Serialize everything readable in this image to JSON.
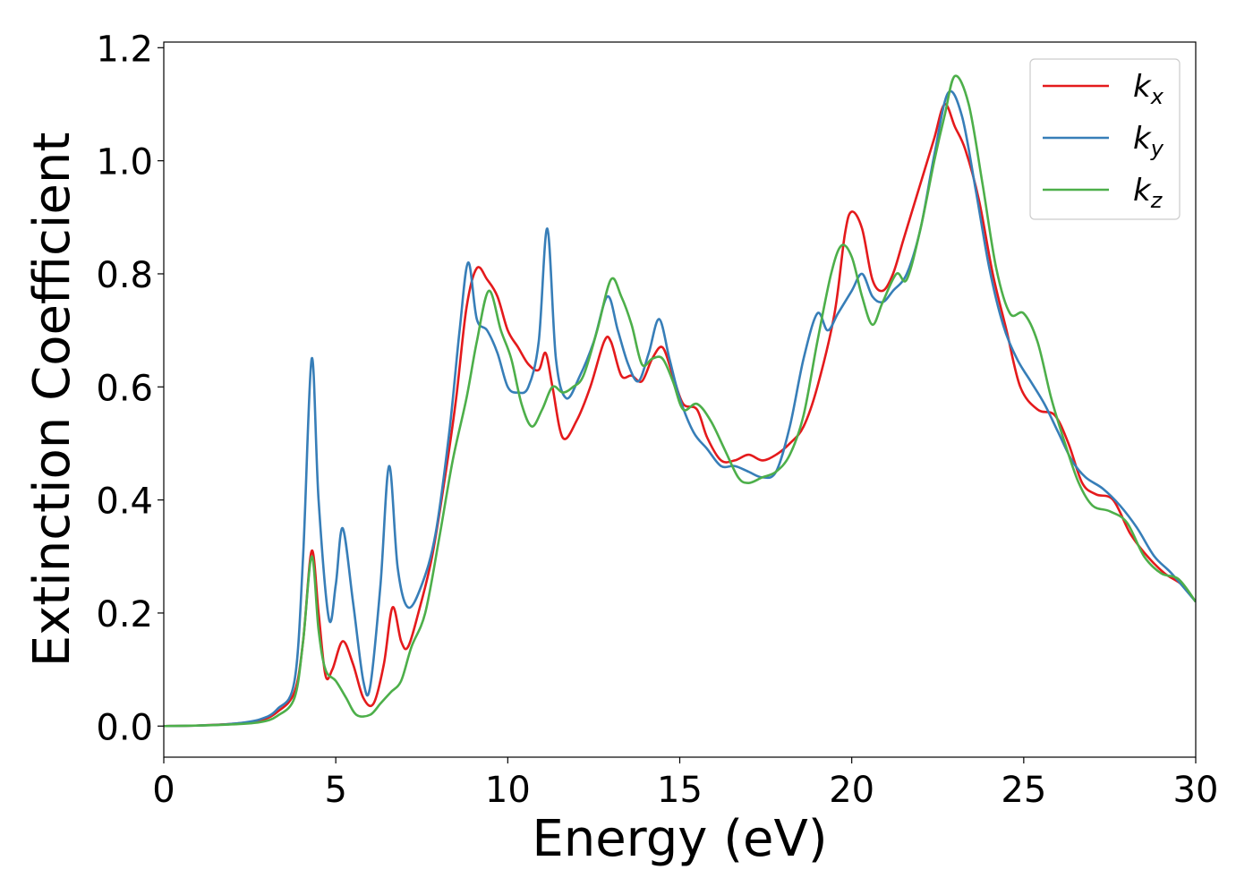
{
  "chart_data": {
    "type": "line",
    "title": "",
    "xlabel": "Energy (eV)",
    "ylabel": "Extinction Coefficient",
    "xlim": [
      0,
      30
    ],
    "ylim": [
      -0.055,
      1.21
    ],
    "xticks": [
      0,
      5,
      10,
      15,
      20,
      25,
      30
    ],
    "xtick_labels": [
      "0",
      "5",
      "10",
      "15",
      "20",
      "25",
      "30"
    ],
    "yticks": [
      0.0,
      0.2,
      0.4,
      0.6,
      0.8,
      1.0,
      1.2
    ],
    "ytick_labels": [
      "0.0",
      "0.2",
      "0.4",
      "0.6",
      "0.8",
      "1.0",
      "1.2"
    ],
    "grid": false,
    "legend_position": "top-right",
    "series": [
      {
        "name": "k_x",
        "base": "k",
        "sub": "x",
        "color": "#e41a1c",
        "points": [
          [
            0,
            0
          ],
          [
            1,
            0.001
          ],
          [
            2,
            0.004
          ],
          [
            2.8,
            0.01
          ],
          [
            3.3,
            0.025
          ],
          [
            3.8,
            0.06
          ],
          [
            4.05,
            0.15
          ],
          [
            4.3,
            0.31
          ],
          [
            4.5,
            0.2
          ],
          [
            4.7,
            0.09
          ],
          [
            4.9,
            0.1
          ],
          [
            5.2,
            0.15
          ],
          [
            5.5,
            0.11
          ],
          [
            5.8,
            0.05
          ],
          [
            6.1,
            0.04
          ],
          [
            6.4,
            0.11
          ],
          [
            6.65,
            0.21
          ],
          [
            6.9,
            0.15
          ],
          [
            7.1,
            0.14
          ],
          [
            7.4,
            0.2
          ],
          [
            7.8,
            0.3
          ],
          [
            8.2,
            0.45
          ],
          [
            8.5,
            0.58
          ],
          [
            8.8,
            0.74
          ],
          [
            9.1,
            0.81
          ],
          [
            9.4,
            0.79
          ],
          [
            9.7,
            0.76
          ],
          [
            10.0,
            0.7
          ],
          [
            10.3,
            0.67
          ],
          [
            10.6,
            0.64
          ],
          [
            10.9,
            0.63
          ],
          [
            11.1,
            0.66
          ],
          [
            11.3,
            0.6
          ],
          [
            11.6,
            0.51
          ],
          [
            12.0,
            0.54
          ],
          [
            12.4,
            0.6
          ],
          [
            12.8,
            0.68
          ],
          [
            13.0,
            0.68
          ],
          [
            13.3,
            0.62
          ],
          [
            13.6,
            0.62
          ],
          [
            13.9,
            0.61
          ],
          [
            14.2,
            0.65
          ],
          [
            14.5,
            0.67
          ],
          [
            14.8,
            0.62
          ],
          [
            15.1,
            0.57
          ],
          [
            15.5,
            0.56
          ],
          [
            15.8,
            0.51
          ],
          [
            16.2,
            0.47
          ],
          [
            16.6,
            0.47
          ],
          [
            17.0,
            0.48
          ],
          [
            17.4,
            0.47
          ],
          [
            17.8,
            0.48
          ],
          [
            18.2,
            0.5
          ],
          [
            18.6,
            0.53
          ],
          [
            19.0,
            0.6
          ],
          [
            19.5,
            0.73
          ],
          [
            19.8,
            0.87
          ],
          [
            20.0,
            0.91
          ],
          [
            20.3,
            0.88
          ],
          [
            20.6,
            0.79
          ],
          [
            20.9,
            0.77
          ],
          [
            21.2,
            0.8
          ],
          [
            21.5,
            0.86
          ],
          [
            21.8,
            0.92
          ],
          [
            22.1,
            0.98
          ],
          [
            22.4,
            1.04
          ],
          [
            22.7,
            1.1
          ],
          [
            23.0,
            1.06
          ],
          [
            23.3,
            1.02
          ],
          [
            23.7,
            0.93
          ],
          [
            24.1,
            0.8
          ],
          [
            24.5,
            0.7
          ],
          [
            24.9,
            0.6
          ],
          [
            25.4,
            0.56
          ],
          [
            25.9,
            0.55
          ],
          [
            26.3,
            0.5
          ],
          [
            26.7,
            0.43
          ],
          [
            27.1,
            0.41
          ],
          [
            27.6,
            0.4
          ],
          [
            28.1,
            0.34
          ],
          [
            28.6,
            0.3
          ],
          [
            29.1,
            0.27
          ],
          [
            29.6,
            0.25
          ],
          [
            30,
            0.22
          ]
        ]
      },
      {
        "name": "k_y",
        "base": "k",
        "sub": "y",
        "color": "#377eb8",
        "points": [
          [
            0,
            0
          ],
          [
            1,
            0.001
          ],
          [
            2,
            0.004
          ],
          [
            2.8,
            0.012
          ],
          [
            3.3,
            0.03
          ],
          [
            3.8,
            0.08
          ],
          [
            4.05,
            0.3
          ],
          [
            4.3,
            0.65
          ],
          [
            4.5,
            0.4
          ],
          [
            4.8,
            0.19
          ],
          [
            5.0,
            0.25
          ],
          [
            5.2,
            0.35
          ],
          [
            5.5,
            0.22
          ],
          [
            5.8,
            0.08
          ],
          [
            6.0,
            0.07
          ],
          [
            6.3,
            0.25
          ],
          [
            6.55,
            0.46
          ],
          [
            6.8,
            0.28
          ],
          [
            7.1,
            0.21
          ],
          [
            7.5,
            0.25
          ],
          [
            7.9,
            0.34
          ],
          [
            8.3,
            0.52
          ],
          [
            8.6,
            0.7
          ],
          [
            8.85,
            0.82
          ],
          [
            9.1,
            0.72
          ],
          [
            9.4,
            0.7
          ],
          [
            9.7,
            0.66
          ],
          [
            10.0,
            0.6
          ],
          [
            10.3,
            0.59
          ],
          [
            10.6,
            0.6
          ],
          [
            10.9,
            0.68
          ],
          [
            11.15,
            0.88
          ],
          [
            11.4,
            0.65
          ],
          [
            11.7,
            0.58
          ],
          [
            12.1,
            0.62
          ],
          [
            12.5,
            0.68
          ],
          [
            12.9,
            0.76
          ],
          [
            13.2,
            0.7
          ],
          [
            13.5,
            0.64
          ],
          [
            13.8,
            0.61
          ],
          [
            14.1,
            0.66
          ],
          [
            14.4,
            0.72
          ],
          [
            14.7,
            0.65
          ],
          [
            15.0,
            0.58
          ],
          [
            15.4,
            0.52
          ],
          [
            15.8,
            0.49
          ],
          [
            16.2,
            0.46
          ],
          [
            16.6,
            0.46
          ],
          [
            17.0,
            0.45
          ],
          [
            17.4,
            0.44
          ],
          [
            17.8,
            0.45
          ],
          [
            18.2,
            0.53
          ],
          [
            18.6,
            0.65
          ],
          [
            19.0,
            0.73
          ],
          [
            19.3,
            0.7
          ],
          [
            19.6,
            0.73
          ],
          [
            20.0,
            0.77
          ],
          [
            20.3,
            0.8
          ],
          [
            20.6,
            0.76
          ],
          [
            20.9,
            0.75
          ],
          [
            21.2,
            0.77
          ],
          [
            21.6,
            0.8
          ],
          [
            22.0,
            0.88
          ],
          [
            22.4,
            1.01
          ],
          [
            22.8,
            1.12
          ],
          [
            23.2,
            1.08
          ],
          [
            23.6,
            0.95
          ],
          [
            24.0,
            0.81
          ],
          [
            24.4,
            0.71
          ],
          [
            24.8,
            0.65
          ],
          [
            25.2,
            0.61
          ],
          [
            25.6,
            0.57
          ],
          [
            26.0,
            0.52
          ],
          [
            26.4,
            0.47
          ],
          [
            26.8,
            0.44
          ],
          [
            27.3,
            0.42
          ],
          [
            27.8,
            0.39
          ],
          [
            28.3,
            0.35
          ],
          [
            28.8,
            0.3
          ],
          [
            29.3,
            0.27
          ],
          [
            30,
            0.22
          ]
        ]
      },
      {
        "name": "k_z",
        "base": "k",
        "sub": "z",
        "color": "#4daf4a",
        "points": [
          [
            0,
            0
          ],
          [
            1,
            0.001
          ],
          [
            2,
            0.003
          ],
          [
            2.8,
            0.007
          ],
          [
            3.3,
            0.018
          ],
          [
            3.8,
            0.05
          ],
          [
            4.05,
            0.15
          ],
          [
            4.3,
            0.3
          ],
          [
            4.5,
            0.17
          ],
          [
            4.7,
            0.1
          ],
          [
            5.0,
            0.08
          ],
          [
            5.3,
            0.05
          ],
          [
            5.6,
            0.02
          ],
          [
            6.0,
            0.02
          ],
          [
            6.3,
            0.04
          ],
          [
            6.6,
            0.06
          ],
          [
            6.9,
            0.08
          ],
          [
            7.2,
            0.14
          ],
          [
            7.6,
            0.2
          ],
          [
            8.0,
            0.33
          ],
          [
            8.4,
            0.47
          ],
          [
            8.8,
            0.58
          ],
          [
            9.1,
            0.68
          ],
          [
            9.45,
            0.77
          ],
          [
            9.8,
            0.7
          ],
          [
            10.1,
            0.65
          ],
          [
            10.4,
            0.57
          ],
          [
            10.7,
            0.53
          ],
          [
            11.0,
            0.56
          ],
          [
            11.3,
            0.6
          ],
          [
            11.6,
            0.59
          ],
          [
            11.9,
            0.6
          ],
          [
            12.2,
            0.62
          ],
          [
            12.6,
            0.7
          ],
          [
            13.0,
            0.79
          ],
          [
            13.3,
            0.76
          ],
          [
            13.6,
            0.71
          ],
          [
            13.9,
            0.64
          ],
          [
            14.2,
            0.65
          ],
          [
            14.5,
            0.65
          ],
          [
            14.8,
            0.61
          ],
          [
            15.1,
            0.56
          ],
          [
            15.5,
            0.57
          ],
          [
            15.9,
            0.54
          ],
          [
            16.3,
            0.49
          ],
          [
            16.7,
            0.44
          ],
          [
            17.0,
            0.43
          ],
          [
            17.4,
            0.44
          ],
          [
            17.8,
            0.45
          ],
          [
            18.2,
            0.48
          ],
          [
            18.6,
            0.55
          ],
          [
            19.0,
            0.68
          ],
          [
            19.4,
            0.8
          ],
          [
            19.7,
            0.85
          ],
          [
            20.0,
            0.83
          ],
          [
            20.3,
            0.76
          ],
          [
            20.6,
            0.71
          ],
          [
            20.9,
            0.75
          ],
          [
            21.3,
            0.8
          ],
          [
            21.6,
            0.79
          ],
          [
            22.0,
            0.88
          ],
          [
            22.4,
            1.0
          ],
          [
            22.7,
            1.08
          ],
          [
            23.0,
            1.15
          ],
          [
            23.4,
            1.1
          ],
          [
            23.8,
            0.96
          ],
          [
            24.2,
            0.81
          ],
          [
            24.6,
            0.73
          ],
          [
            25.0,
            0.73
          ],
          [
            25.4,
            0.68
          ],
          [
            25.8,
            0.58
          ],
          [
            26.2,
            0.5
          ],
          [
            26.6,
            0.43
          ],
          [
            27.0,
            0.39
          ],
          [
            27.5,
            0.38
          ],
          [
            28.0,
            0.36
          ],
          [
            28.5,
            0.3
          ],
          [
            29.0,
            0.27
          ],
          [
            29.5,
            0.26
          ],
          [
            30,
            0.22
          ]
        ]
      }
    ]
  }
}
